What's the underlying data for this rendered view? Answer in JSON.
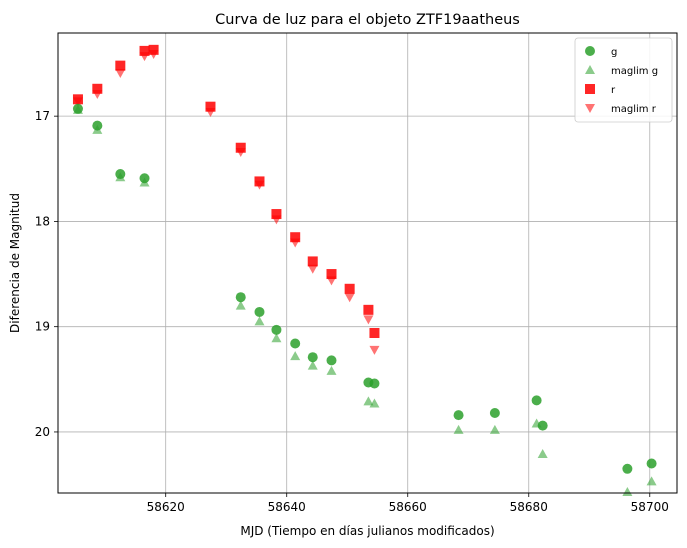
{
  "chart_data": {
    "type": "scatter",
    "title": "Curva de luz para el objeto ZTF19aatheus",
    "xlabel": "MJD (Tiempo en días julianos modificados)",
    "ylabel": "Diferencia de Magnitud",
    "xlim": [
      58602.2,
      58704.5
    ],
    "ylim": [
      20.58,
      16.21
    ],
    "y_inverted": true,
    "grid": true,
    "legend_position": "top-right",
    "x_ticks": [
      58620,
      58640,
      58660,
      58680,
      58700
    ],
    "x_tick_labels": [
      "58620",
      "58640",
      "58660",
      "58680",
      "58700"
    ],
    "y_ticks": [
      17,
      18,
      19,
      20
    ],
    "y_tick_labels": [
      "17",
      "18",
      "19",
      "20"
    ],
    "series": [
      {
        "name": "g",
        "marker": "circle",
        "color": "#2ca02c",
        "opacity": 0.85,
        "x": [
          58605.5,
          58608.7,
          58612.5,
          58616.5,
          58632.4,
          58635.5,
          58638.3,
          58641.4,
          58644.3,
          58647.4,
          58653.5,
          58654.5,
          58668.4,
          58674.4,
          58681.3,
          58682.3,
          58696.3,
          58700.3
        ],
        "y": [
          16.93,
          17.09,
          17.55,
          17.59,
          18.72,
          18.86,
          19.03,
          19.16,
          19.29,
          19.32,
          19.53,
          19.54,
          19.84,
          19.82,
          19.7,
          19.94,
          20.35,
          20.3
        ]
      },
      {
        "name": "maglim g",
        "marker": "triangle-up",
        "color": "#2ca02c",
        "opacity": 0.55,
        "x": [
          58605.5,
          58608.7,
          58612.5,
          58616.5,
          58632.4,
          58635.5,
          58638.3,
          58641.4,
          58644.3,
          58647.4,
          58653.5,
          58654.5,
          58668.4,
          58674.4,
          58681.3,
          58682.3,
          58696.3,
          58700.3
        ],
        "y": [
          16.94,
          17.13,
          17.58,
          17.63,
          18.8,
          18.95,
          19.11,
          19.28,
          19.37,
          19.42,
          19.71,
          19.73,
          19.98,
          19.98,
          19.92,
          20.21,
          20.57,
          20.47
        ]
      },
      {
        "name": "r",
        "marker": "square",
        "color": "#ff0000",
        "opacity": 0.85,
        "x": [
          58605.5,
          58608.7,
          58612.5,
          58616.5,
          58618.0,
          58627.4,
          58632.4,
          58635.5,
          58638.3,
          58641.4,
          58644.3,
          58647.4,
          58650.4,
          58653.5,
          58654.5
        ],
        "y": [
          16.84,
          16.74,
          16.52,
          16.38,
          16.37,
          16.91,
          17.3,
          17.62,
          17.93,
          18.15,
          18.38,
          18.5,
          18.64,
          18.84,
          19.06
        ]
      },
      {
        "name": "maglim r",
        "marker": "triangle-down",
        "color": "#ff0000",
        "opacity": 0.55,
        "x": [
          58605.5,
          58608.7,
          58612.5,
          58616.5,
          58618.0,
          58627.4,
          58632.4,
          58635.5,
          58638.3,
          58641.4,
          58644.3,
          58647.4,
          58650.4,
          58653.5,
          58654.5
        ],
        "y": [
          16.86,
          16.79,
          16.59,
          16.43,
          16.41,
          16.96,
          17.34,
          17.65,
          17.98,
          18.2,
          18.45,
          18.56,
          18.72,
          18.93,
          19.22
        ]
      }
    ]
  }
}
